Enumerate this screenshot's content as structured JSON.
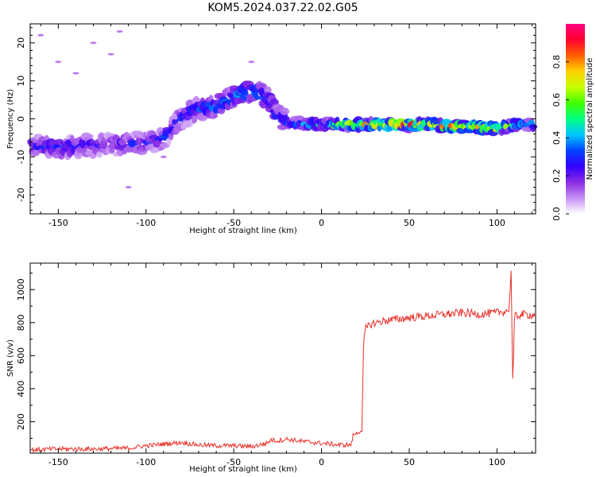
{
  "title": "KOM5.2024.037.22.02.G05",
  "chart_data": [
    {
      "type": "heatmap",
      "xlabel": "Height of straight line (km)",
      "ylabel": "Frequency (Hz)",
      "xlim": [
        -166,
        122
      ],
      "ylim": [
        -25,
        25
      ],
      "xticks": [
        -150,
        -100,
        -50,
        0,
        50,
        100
      ],
      "yticks": [
        -20,
        -10,
        0,
        10,
        20
      ],
      "colorbar": {
        "label": "Normalized spectral amplitude",
        "range": [
          0,
          1
        ],
        "ticks": [
          "0.0",
          "0.2",
          "0.4",
          "0.6",
          "0.8"
        ],
        "colormap": [
          "#ffffff",
          "#c690f5",
          "#8a2be2",
          "#3300ff",
          "#0044ff",
          "#00c8ff",
          "#00ff80",
          "#40ff00",
          "#c8ff00",
          "#ffd000",
          "#ff6000",
          "#ff0030",
          "#ff0080"
        ]
      },
      "ridge": {
        "x": [
          -166,
          -150,
          -130,
          -110,
          -100,
          -90,
          -80,
          -70,
          -60,
          -50,
          -40,
          -30,
          -25,
          -20,
          0,
          20,
          40,
          60,
          80,
          100,
          110,
          122
        ],
        "frequency": [
          -7,
          -7.5,
          -7,
          -6.5,
          -6.5,
          -5,
          0,
          3,
          3,
          6,
          7.5,
          5,
          1,
          -1,
          -1.5,
          -1.5,
          -1.5,
          -1.5,
          -2,
          -2.5,
          -1.5,
          -1.5
        ],
        "amplitude": [
          0.25,
          0.3,
          0.25,
          0.25,
          0.25,
          0.3,
          0.3,
          0.35,
          0.4,
          0.4,
          0.45,
          0.4,
          0.3,
          0.35,
          0.45,
          0.7,
          0.85,
          0.8,
          0.8,
          0.8,
          0.5,
          0.45
        ]
      },
      "scattered_noise": {
        "x": [
          -160,
          -150,
          -140,
          -130,
          -120,
          -115,
          -110,
          -90,
          -40
        ],
        "frequency": [
          22,
          15,
          12,
          20,
          17,
          23,
          -18,
          -10,
          15
        ]
      }
    },
    {
      "type": "line",
      "xlabel": "Height of straight line (km)",
      "ylabel": "SNR (v/v)",
      "xlim": [
        -166,
        122
      ],
      "ylim": [
        10,
        1160
      ],
      "xticks": [
        -150,
        -100,
        -50,
        0,
        50,
        100
      ],
      "yticks": [
        200,
        400,
        600,
        800,
        1000
      ],
      "color": "#e8302a",
      "x": [
        -166,
        -150,
        -130,
        -110,
        -100,
        -90,
        -80,
        -70,
        -60,
        -50,
        -40,
        -35,
        -31,
        -29,
        -25,
        -20,
        -10,
        0,
        10,
        17,
        18,
        22,
        23,
        24,
        25,
        28,
        35,
        50,
        60,
        70,
        80,
        90,
        100,
        105,
        107,
        108,
        109,
        110,
        115,
        122
      ],
      "snr": [
        30,
        35,
        35,
        40,
        55,
        65,
        75,
        60,
        55,
        55,
        50,
        60,
        70,
        90,
        85,
        95,
        80,
        70,
        60,
        60,
        120,
        140,
        150,
        680,
        760,
        790,
        810,
        830,
        840,
        850,
        860,
        850,
        860,
        870,
        880,
        1150,
        420,
        840,
        850,
        845
      ]
    }
  ]
}
